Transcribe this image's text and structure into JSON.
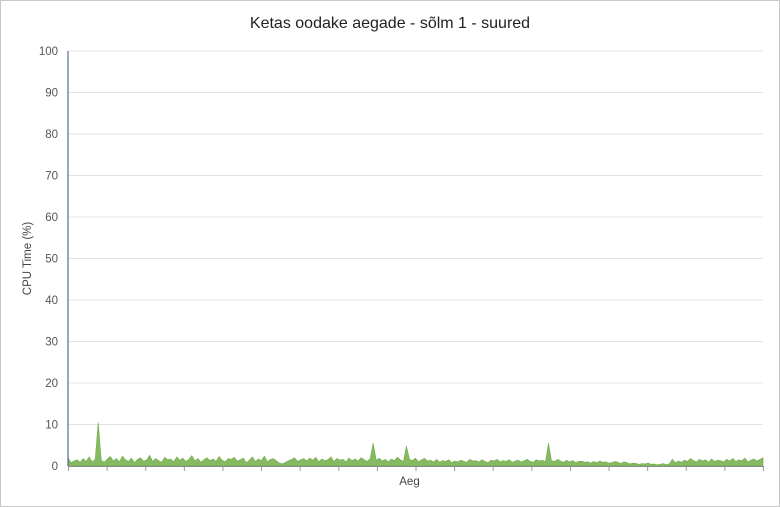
{
  "chart_data": {
    "type": "area",
    "title": "Ketas oodake aegade - sõlm 1 - suured",
    "xlabel": "Aeg",
    "ylabel": "CPU Time (%)",
    "ylim": [
      0,
      100
    ],
    "yticks": [
      0,
      10,
      20,
      30,
      40,
      50,
      60,
      70,
      80,
      90,
      100
    ],
    "grid": "horizontal",
    "legend": "none",
    "series_color": "#70ad47",
    "series": [
      {
        "values": [
          2.0,
          0.8,
          1.2,
          1.5,
          0.9,
          1.8,
          1.1,
          2.2,
          1.0,
          1.6,
          10.5,
          1.4,
          0.9,
          1.7,
          2.3,
          1.2,
          1.8,
          1.0,
          2.4,
          1.5,
          1.1,
          1.9,
          0.8,
          1.6,
          2.0,
          1.2,
          1.4,
          2.6,
          1.1,
          1.8,
          1.3,
          0.9,
          2.1,
          1.5,
          1.7,
          1.0,
          2.2,
          1.4,
          1.9,
          1.1,
          1.6,
          2.5,
          1.2,
          1.8,
          0.9,
          1.5,
          2.0,
          1.3,
          1.7,
          1.1,
          2.3,
          1.4,
          1.0,
          1.8,
          1.6,
          2.1,
          1.2,
          1.5,
          1.9,
          0.8,
          1.4,
          2.2,
          1.1,
          1.7,
          1.3,
          2.4,
          1.0,
          1.6,
          1.8,
          1.2,
          0.7,
          0.5,
          0.9,
          1.3,
          1.6,
          2.0,
          1.1,
          1.5,
          1.8,
          1.2,
          1.9,
          1.4,
          2.1,
          1.0,
          1.7,
          1.3,
          1.5,
          2.2,
          1.1,
          1.8,
          1.4,
          1.6,
          1.0,
          1.9,
          1.3,
          1.7,
          1.2,
          2.0,
          1.5,
          1.1,
          1.8,
          5.5,
          1.4,
          1.9,
          1.2,
          1.6,
          1.0,
          1.7,
          1.3,
          2.1,
          1.5,
          1.1,
          4.8,
          1.6,
          1.3,
          1.9,
          1.0,
          1.5,
          1.8,
          1.2,
          1.4,
          1.0,
          1.6,
          0.9,
          1.3,
          1.1,
          1.5,
          0.8,
          1.2,
          1.0,
          1.4,
          1.1,
          0.9,
          1.6,
          1.2,
          1.3,
          1.0,
          1.5,
          1.1,
          0.8,
          1.4,
          1.2,
          1.6,
          1.0,
          1.3,
          1.1,
          1.5,
          0.9,
          1.2,
          1.4,
          1.0,
          1.3,
          1.6,
          1.1,
          0.9,
          1.5,
          1.2,
          1.4,
          1.0,
          5.5,
          1.3,
          1.1,
          1.6,
          1.2,
          0.9,
          1.4,
          1.0,
          1.3,
          0.8,
          1.1,
          1.2,
          0.9,
          1.0,
          0.7,
          1.1,
          0.8,
          1.2,
          0.9,
          1.0,
          0.7,
          0.8,
          1.1,
          0.9,
          0.6,
          1.0,
          0.8,
          0.5,
          0.7,
          0.6,
          0.4,
          0.6,
          0.5,
          0.7,
          0.4,
          0.5,
          0.3,
          0.4,
          0.6,
          0.3,
          0.5,
          1.6,
          0.8,
          1.2,
          0.9,
          1.4,
          1.1,
          1.8,
          1.3,
          1.0,
          1.6,
          1.2,
          1.5,
          0.9,
          1.7,
          1.1,
          1.4,
          1.3,
          1.0,
          1.6,
          1.2,
          1.8,
          1.1,
          1.5,
          1.3,
          1.9,
          1.0,
          1.4,
          1.7,
          1.2,
          1.6,
          2.0
        ]
      }
    ]
  }
}
